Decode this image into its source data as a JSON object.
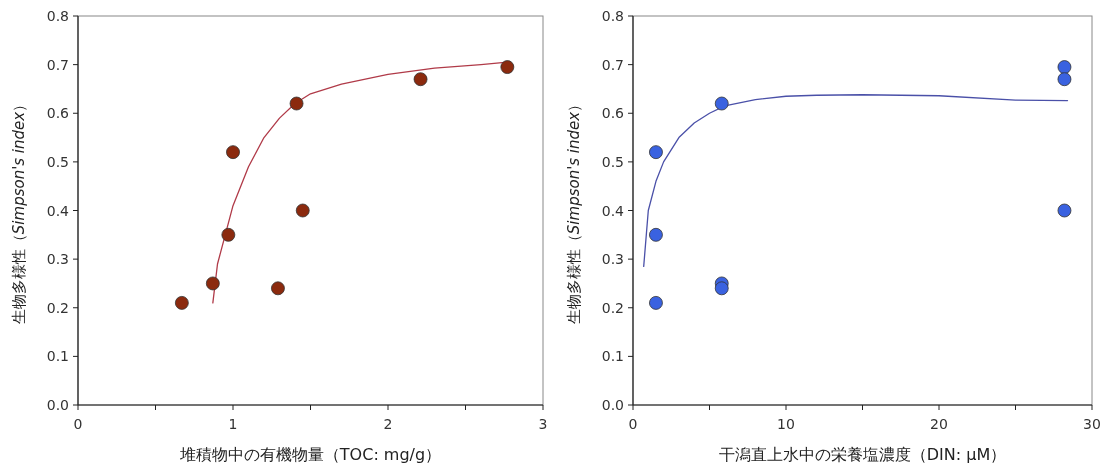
{
  "chart_data": [
    {
      "type": "scatter",
      "xlabel": "堆積物中の有機物量（TOC: mg/g）",
      "ylabel": "生物多様性（*Simpson's index*）",
      "xlim": [
        0,
        3
      ],
      "xticks": [
        0,
        {
          "value": 0.5,
          "label": null
        },
        1,
        {
          "value": 1.5,
          "label": null
        },
        2,
        {
          "value": 2.5,
          "label": null
        },
        3
      ],
      "ylim": [
        0,
        0.8
      ],
      "yticks": [
        {
          "value": 0,
          "label": "0.0"
        },
        0.1,
        0.2,
        0.3,
        0.4,
        0.5,
        0.6,
        0.7,
        0.8
      ],
      "marker": "circle",
      "series": [
        {
          "type": "line",
          "marker": "none",
          "color": "#b03a48",
          "x": [
            0.87,
            0.9,
            0.95,
            1.0,
            1.1,
            1.2,
            1.3,
            1.4,
            1.5,
            1.7,
            2.0,
            2.3,
            2.6,
            2.77
          ],
          "values": [
            0.21,
            0.29,
            0.35,
            0.41,
            0.49,
            0.55,
            0.59,
            0.62,
            0.64,
            0.66,
            0.68,
            0.693,
            0.7,
            0.705
          ]
        },
        {
          "color": "#8b2a0e",
          "x": [
            0.67,
            0.87,
            0.97,
            1.0,
            1.29,
            1.41,
            1.45,
            2.21,
            2.77
          ],
          "values": [
            0.21,
            0.25,
            0.35,
            0.52,
            0.24,
            0.62,
            0.4,
            0.67,
            0.695
          ]
        }
      ]
    },
    {
      "type": "scatter",
      "xlabel": "干潟直上水中の栄養塩濃度（DIN: μM）",
      "ylabel": "生物多様性（*Simpson's index*）",
      "xlim": [
        0,
        30
      ],
      "xticks": [
        0,
        {
          "value": 5,
          "label": null
        },
        10,
        {
          "value": 15,
          "label": null
        },
        20,
        {
          "value": 25,
          "label": null
        },
        30
      ],
      "ylim": [
        0,
        0.8
      ],
      "yticks": [
        {
          "value": 0,
          "label": "0.0"
        },
        0.1,
        0.2,
        0.3,
        0.4,
        0.5,
        0.6,
        0.7,
        0.8
      ],
      "marker": "circle",
      "series": [
        {
          "type": "line",
          "marker": "none",
          "color": "#4a50a8",
          "x": [
            0.7,
            1.0,
            1.5,
            2,
            3,
            4,
            5,
            6,
            8,
            10,
            12,
            15,
            20,
            25,
            28.4
          ],
          "values": [
            0.285,
            0.4,
            0.46,
            0.5,
            0.55,
            0.58,
            0.6,
            0.615,
            0.628,
            0.635,
            0.637,
            0.638,
            0.636,
            0.627,
            0.626
          ]
        },
        {
          "color": "#3a62e0",
          "x": [
            1.5,
            1.5,
            1.5,
            5.8,
            5.8,
            5.8,
            28.2,
            28.2,
            28.2
          ],
          "values": [
            0.52,
            0.35,
            0.21,
            0.62,
            0.25,
            0.24,
            0.695,
            0.67,
            0.4
          ]
        }
      ]
    }
  ]
}
